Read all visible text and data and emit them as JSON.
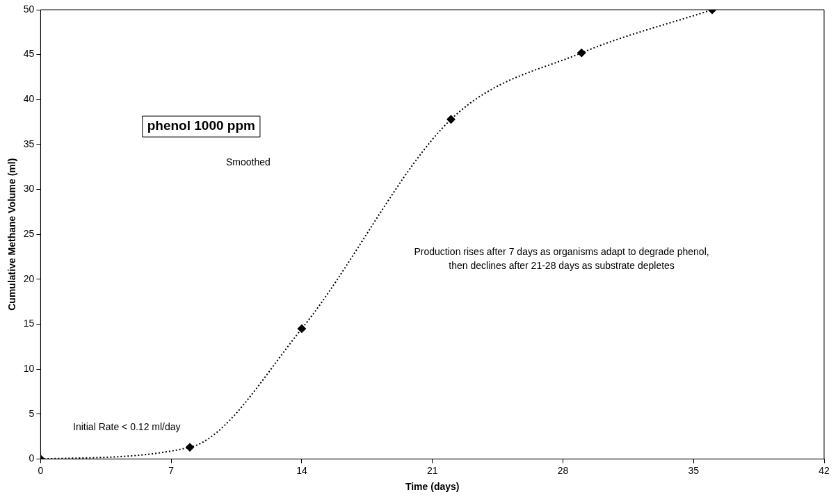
{
  "chart_data": {
    "type": "line",
    "title": "phenol 1000 ppm",
    "xlabel": "Time (days)",
    "ylabel": "Cumulative Methane Volume (ml)",
    "x": [
      0,
      8,
      14,
      22,
      29,
      36
    ],
    "series": [
      {
        "color": "#000000",
        "values": [
          0,
          1.3,
          14.5,
          37.8,
          45.2,
          50
        ]
      }
    ],
    "xlim": [
      0,
      42
    ],
    "xticks": [
      0,
      7,
      14,
      21,
      28,
      35,
      42
    ],
    "ylim": [
      0,
      50
    ],
    "yticks": [
      0,
      5,
      10,
      15,
      20,
      25,
      30,
      35,
      40,
      45,
      50
    ],
    "grid": false,
    "legend": false,
    "marker": "diamond",
    "line_style": "dotted",
    "annotations": [
      "Smoothed",
      "Production rises after 7 days as organisms adapt to degrade phenol,\nthen declines after 21-28 days as substrate depletes",
      "Initial Rate < 0.12 ml/day"
    ]
  }
}
